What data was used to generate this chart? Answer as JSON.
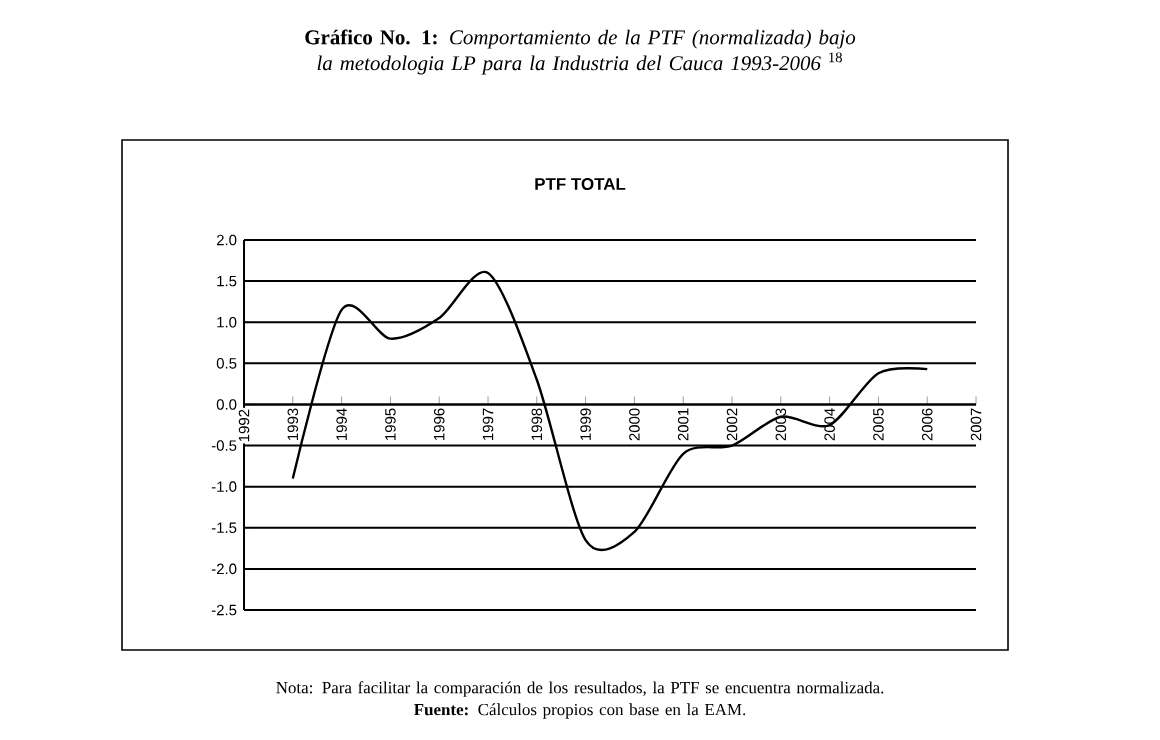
{
  "chart_data": {
    "type": "line",
    "title": "**Gráfico No. 1:** *Comportamiento de la PTF (normalizada) bajo la metodologia LP para la Industria del Cauca 1993-2006* $^{18}$",
    "subtitle": "PTF TOTAL",
    "x": [
      1993,
      1994,
      1995,
      1996,
      1997,
      1998,
      1999,
      2000,
      2001,
      2002,
      2003,
      2004,
      2005,
      2006
    ],
    "values": [
      -0.9,
      1.15,
      0.8,
      1.05,
      1.6,
      0.3,
      -1.65,
      -1.55,
      -0.6,
      -0.5,
      -0.15,
      -0.25,
      0.38,
      0.43
    ],
    "color": "#000000",
    "xlim": [
      1992,
      2007
    ],
    "xticks": [
      1992,
      1993,
      1994,
      1995,
      1996,
      1997,
      1998,
      1999,
      2000,
      2001,
      2002,
      2003,
      2004,
      2005,
      2006,
      2007
    ],
    "ylim": [
      -2.5,
      2.0
    ],
    "yticks": [
      {
        "value": -2.5,
        "label": "-2.5"
      },
      {
        "value": -2.0,
        "label": "-2.0"
      },
      {
        "value": -1.5,
        "label": "-1.5"
      },
      {
        "value": -1.0,
        "label": "-1.0"
      },
      {
        "value": -0.5,
        "label": "-0.5"
      },
      {
        "value": 0.0,
        "label": "0.0"
      },
      {
        "value": 0.5,
        "label": "0.5"
      },
      {
        "value": 1.0,
        "label": "1.0"
      },
      {
        "value": 1.5,
        "label": "1.5"
      },
      {
        "value": 2.0,
        "label": "2.0"
      }
    ],
    "grid": "y",
    "legend": false,
    "marker": "none",
    "line_style": "solid",
    "annotations": [
      "Nota: Para facilitar la comparación de los resultados, la PTF se encuentra normalizada.",
      "**Fuente:** Cálculos propios con base en la EAM."
    ]
  }
}
